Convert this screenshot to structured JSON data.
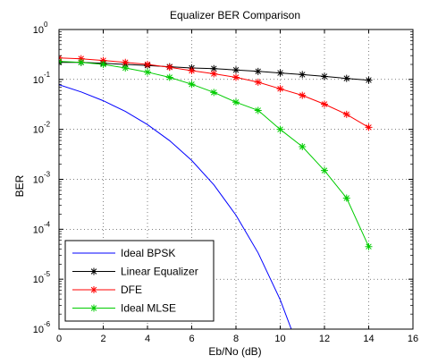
{
  "chart_data": {
    "type": "line",
    "title": "Equalizer BER Comparison",
    "xlabel": "Eb/No (dB)",
    "ylabel": "BER",
    "xlim": [
      0,
      16
    ],
    "ylim_log10": [
      -6,
      0
    ],
    "y_scale": "log",
    "grid": true,
    "legend_position": "bottom-left",
    "x_ticks": [
      "0",
      "2",
      "4",
      "6",
      "8",
      "10",
      "12",
      "14",
      "16"
    ],
    "y_tick_base": "10",
    "y_tick_exponents": [
      "0",
      "-1",
      "-2",
      "-3",
      "-4",
      "-5",
      "-6"
    ],
    "series": [
      {
        "name": "Ideal BPSK",
        "color": "#0000ff",
        "style": "line",
        "x": [
          0,
          1,
          2,
          3,
          4,
          5,
          6,
          7,
          8,
          9,
          10,
          10.5
        ],
        "y": [
          0.0786,
          0.0563,
          0.0375,
          0.0229,
          0.0125,
          0.00595,
          0.00239,
          0.000773,
          0.000191,
          3.36e-05,
          3.87e-06,
          1e-06
        ]
      },
      {
        "name": "Linear Equalizer",
        "color": "#000000",
        "style": "line+marker",
        "x": [
          0,
          1,
          2,
          3,
          4,
          5,
          6,
          7,
          8,
          9,
          10,
          11,
          12,
          13,
          14
        ],
        "y": [
          0.22,
          0.22,
          0.21,
          0.2,
          0.19,
          0.18,
          0.17,
          0.165,
          0.155,
          0.145,
          0.135,
          0.125,
          0.115,
          0.105,
          0.097
        ]
      },
      {
        "name": "DFE",
        "color": "#ff0000",
        "style": "line+marker",
        "x": [
          0,
          1,
          2,
          3,
          4,
          5,
          6,
          7,
          8,
          9,
          10,
          11,
          12,
          13,
          14
        ],
        "y": [
          0.27,
          0.26,
          0.24,
          0.22,
          0.2,
          0.175,
          0.15,
          0.13,
          0.11,
          0.088,
          0.065,
          0.048,
          0.032,
          0.02,
          0.011
        ]
      },
      {
        "name": "Ideal MLSE",
        "color": "#00cc00",
        "style": "line+marker",
        "x": [
          0,
          1,
          2,
          3,
          4,
          5,
          6,
          7,
          8,
          9,
          10,
          11,
          12,
          13,
          14
        ],
        "y": [
          0.23,
          0.22,
          0.2,
          0.17,
          0.14,
          0.11,
          0.08,
          0.055,
          0.035,
          0.024,
          0.01,
          0.0045,
          0.0015,
          0.00042,
          4.5e-05
        ]
      }
    ]
  }
}
